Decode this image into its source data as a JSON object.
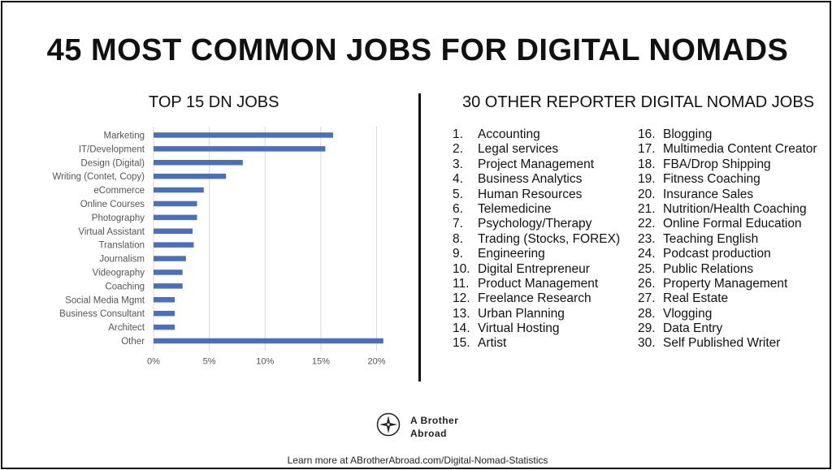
{
  "title": "45 MOST COMMON JOBS FOR DIGITAL NOMADS",
  "chart_data": {
    "type": "bar",
    "orientation": "horizontal",
    "title": "TOP 15 DN JOBS",
    "categories": [
      "Marketing",
      "IT/Development",
      "Design (Digital)",
      "Writing (Contet, Copy)",
      "eCommerce",
      "Online Courses",
      "Photography",
      "Virtual Assistant",
      "Translation",
      "Journalism",
      "Videography",
      "Coaching",
      "Social Media Mgmt",
      "Business Consultant",
      "Architect",
      "Other"
    ],
    "values": [
      16.1,
      15.4,
      8.0,
      6.5,
      4.5,
      3.9,
      3.9,
      3.5,
      3.6,
      2.9,
      2.6,
      2.6,
      1.9,
      1.9,
      1.9,
      20.6
    ],
    "xlim": [
      0,
      22
    ],
    "ticks": [
      0,
      5,
      10,
      15,
      20
    ],
    "tick_labels": [
      "0%",
      "5%",
      "10%",
      "15%",
      "20%"
    ],
    "grid": "vertical",
    "bar_color": "#4a6fbf"
  },
  "other_jobs": {
    "title": "30 OTHER REPORTER DIGITAL NOMAD JOBS",
    "column1": [
      {
        "num": "1.",
        "label": "Accounting"
      },
      {
        "num": "2.",
        "label": "Legal services"
      },
      {
        "num": "3.",
        "label": "Project Management"
      },
      {
        "num": "4.",
        "label": "Business Analytics"
      },
      {
        "num": "5.",
        "label": "Human Resources"
      },
      {
        "num": "6.",
        "label": "Telemedicine"
      },
      {
        "num": "7.",
        "label": "Psychology/Therapy"
      },
      {
        "num": "8.",
        "label": "Trading (Stocks, FOREX)"
      },
      {
        "num": "9.",
        "label": "Engineering"
      },
      {
        "num": "10.",
        "label": "Digital Entrepreneur"
      },
      {
        "num": "11.",
        "label": "Product Management"
      },
      {
        "num": "12.",
        "label": "Freelance Research"
      },
      {
        "num": "13.",
        "label": "Urban Planning"
      },
      {
        "num": "14.",
        "label": "Virtual Hosting"
      },
      {
        "num": "15.",
        "label": "Artist"
      }
    ],
    "column2": [
      {
        "num": "16.",
        "label": "Blogging"
      },
      {
        "num": "17.",
        "label": "Multimedia Content Creator"
      },
      {
        "num": "18.",
        "label": "FBA/Drop Shipping"
      },
      {
        "num": "19.",
        "label": "Fitness Coaching"
      },
      {
        "num": "20.",
        "label": "Insurance Sales"
      },
      {
        "num": "21.",
        "label": "Nutrition/Health Coaching"
      },
      {
        "num": "22.",
        "label": "Online Formal Education"
      },
      {
        "num": "23.",
        "label": "Teaching English"
      },
      {
        "num": "24.",
        "label": "Podcast production"
      },
      {
        "num": "25.",
        "label": "Public Relations"
      },
      {
        "num": "26.",
        "label": "Property Management"
      },
      {
        "num": "27.",
        "label": "Real Estate"
      },
      {
        "num": "28.",
        "label": "Vlogging"
      },
      {
        "num": "29.",
        "label": "Data Entry"
      },
      {
        "num": "30.",
        "label": "Self Published Writer"
      }
    ]
  },
  "brand": {
    "line1": "A Brother",
    "line2": "Abroad",
    "logo_icon": "compass-icon"
  },
  "footer": "Learn more at ABrotherAbroad.com/Digital-Nomad-Statistics"
}
